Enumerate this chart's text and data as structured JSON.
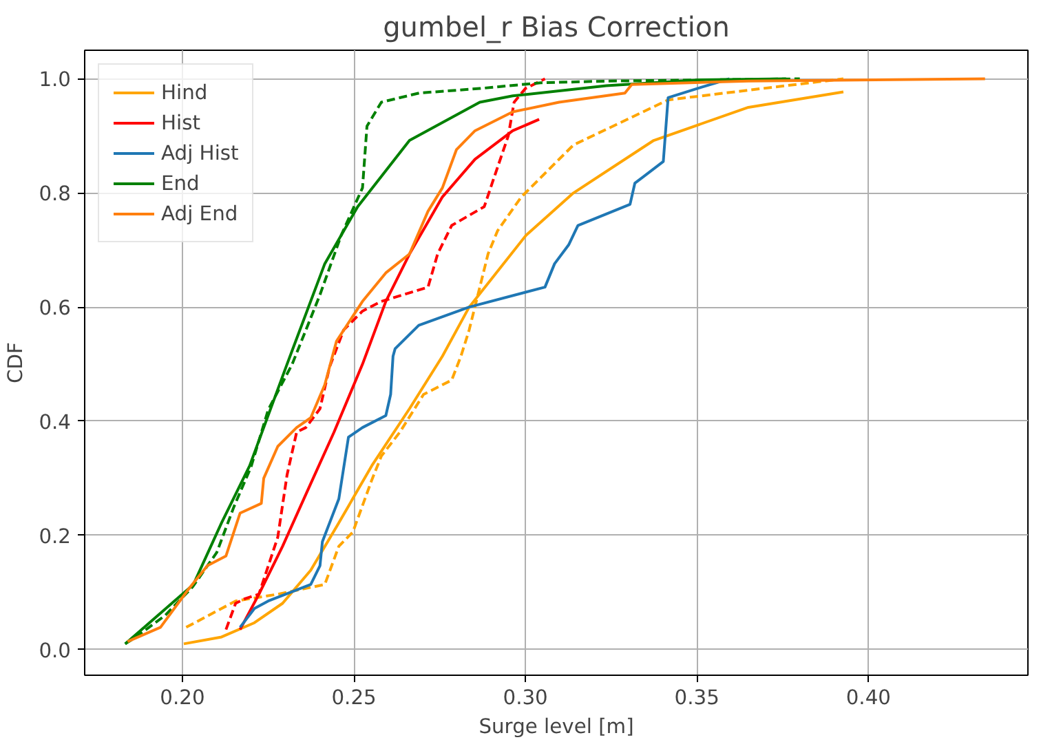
{
  "chart_data": {
    "type": "line",
    "title": "gumbel_r Bias Correction",
    "xlabel": "Surge level [m]",
    "ylabel": "CDF",
    "xlim": [
      0.1715,
      0.4465
    ],
    "ylim": [
      -0.045,
      1.05
    ],
    "xticks": [
      {
        "value": 0.2,
        "label": "0.20"
      },
      0.25,
      {
        "value": 0.3,
        "label": "0.30"
      },
      0.35,
      {
        "value": 0.4,
        "label": "0.40"
      }
    ],
    "yticks": [
      {
        "value": 0,
        "label": "0.0"
      },
      0.2,
      0.4,
      0.6,
      0.8,
      {
        "value": 1,
        "label": "1.0"
      }
    ],
    "grid": true,
    "legend": "top left",
    "line_style": "solid",
    "series": [
      {
        "name": "Hind",
        "color": "#ffa500",
        "x": [
          0.2004,
          0.2114,
          0.221,
          0.2292,
          0.2374,
          0.2456,
          0.2552,
          0.2662,
          0.2758,
          0.2836,
          0.3002,
          0.314,
          0.3374,
          0.365,
          0.3927
        ],
        "values": [
          0.01,
          0.022,
          0.047,
          0.081,
          0.139,
          0.222,
          0.322,
          0.422,
          0.514,
          0.6,
          0.726,
          0.8,
          0.892,
          0.95,
          0.977
        ]
      },
      {
        "color": "#ffa500",
        "line_style": "dashed",
        "x": [
          0.2011,
          0.2155,
          0.2278,
          0.2415,
          0.2456,
          0.2497,
          0.2552,
          0.258,
          0.2634,
          0.2703,
          0.2785,
          0.2812,
          0.2836,
          0.2891,
          0.2919,
          0.2988,
          0.314,
          0.3416,
          0.365,
          0.3927
        ],
        "values": [
          0.039,
          0.085,
          0.097,
          0.114,
          0.181,
          0.206,
          0.297,
          0.339,
          0.381,
          0.447,
          0.472,
          0.514,
          0.56,
          0.693,
          0.734,
          0.793,
          0.884,
          0.963,
          0.98,
          1.0
        ]
      },
      {
        "name": "Hist",
        "color": "#ff0000",
        "x": [
          0.2168,
          0.2223,
          0.2292,
          0.236,
          0.2442,
          0.2525,
          0.2593,
          0.2662,
          0.2758,
          0.2853,
          0.2963,
          0.304
        ],
        "values": [
          0.035,
          0.097,
          0.181,
          0.272,
          0.381,
          0.5,
          0.61,
          0.693,
          0.793,
          0.859,
          0.909,
          0.929
        ]
      },
      {
        "color": "#ff0000",
        "line_style": "dashed",
        "x": [
          0.2127,
          0.2155,
          0.2182,
          0.2223,
          0.2278,
          0.2305,
          0.2333,
          0.236,
          0.2401,
          0.2429,
          0.247,
          0.2525,
          0.258,
          0.2716,
          0.2744,
          0.2785,
          0.288,
          0.2908,
          0.295,
          0.2967,
          0.3,
          0.3057
        ],
        "values": [
          0.035,
          0.081,
          0.089,
          0.097,
          0.197,
          0.306,
          0.381,
          0.389,
          0.422,
          0.495,
          0.56,
          0.593,
          0.61,
          0.635,
          0.693,
          0.743,
          0.776,
          0.826,
          0.9,
          0.959,
          0.983,
          1.0
        ]
      },
      {
        "name": "Adj Hist",
        "color": "#1f77b4",
        "x": [
          0.2168,
          0.221,
          0.225,
          0.2374,
          0.2401,
          0.2408,
          0.2456,
          0.2484,
          0.2525,
          0.2593,
          0.2607,
          0.2614,
          0.262,
          0.2689,
          0.2836,
          0.3057,
          0.3085,
          0.3126,
          0.3153,
          0.3305,
          0.3319,
          0.3402,
          0.3416,
          0.3512,
          0.3595
        ],
        "values": [
          0.039,
          0.072,
          0.085,
          0.114,
          0.147,
          0.189,
          0.264,
          0.372,
          0.389,
          0.41,
          0.447,
          0.514,
          0.527,
          0.568,
          0.6,
          0.635,
          0.676,
          0.709,
          0.743,
          0.78,
          0.817,
          0.855,
          0.967,
          0.985,
          1.0
        ]
      },
      {
        "name": "End",
        "color": "#008000",
        "x": [
          0.1833,
          0.2032,
          0.2114,
          0.2196,
          0.2305,
          0.2415,
          0.2511,
          0.2662,
          0.2867,
          0.2963,
          0.3236,
          0.351,
          0.376
        ],
        "values": [
          0.01,
          0.114,
          0.222,
          0.322,
          0.5,
          0.676,
          0.776,
          0.892,
          0.959,
          0.97,
          0.988,
          0.998,
          1.0
        ]
      },
      {
        "color": "#008000",
        "line_style": "dashed",
        "x": [
          0.1833,
          0.186,
          0.195,
          0.203,
          0.21,
          0.215,
          0.22,
          0.225,
          0.232,
          0.24,
          0.2463,
          0.2525,
          0.2538,
          0.258,
          0.269,
          0.2867,
          0.3045,
          0.324,
          0.38
        ],
        "values": [
          0.01,
          0.02,
          0.06,
          0.11,
          0.17,
          0.25,
          0.32,
          0.42,
          0.5,
          0.62,
          0.726,
          0.809,
          0.917,
          0.959,
          0.975,
          0.983,
          0.993,
          0.996,
          1.0
        ]
      },
      {
        "name": "Adj End",
        "color": "#ff7f0e",
        "x": [
          0.184,
          0.1936,
          0.2018,
          0.2073,
          0.2127,
          0.2168,
          0.223,
          0.2237,
          0.2278,
          0.2333,
          0.2374,
          0.2415,
          0.2449,
          0.2525,
          0.2593,
          0.2662,
          0.2716,
          0.2758,
          0.2799,
          0.2853,
          0.2963,
          0.3098,
          0.329,
          0.331,
          0.365,
          0.434
        ],
        "values": [
          0.014,
          0.039,
          0.106,
          0.147,
          0.164,
          0.239,
          0.256,
          0.3,
          0.356,
          0.389,
          0.406,
          0.464,
          0.54,
          0.61,
          0.66,
          0.693,
          0.768,
          0.809,
          0.876,
          0.909,
          0.942,
          0.959,
          0.975,
          0.99,
          0.996,
          1.0
        ]
      }
    ]
  }
}
